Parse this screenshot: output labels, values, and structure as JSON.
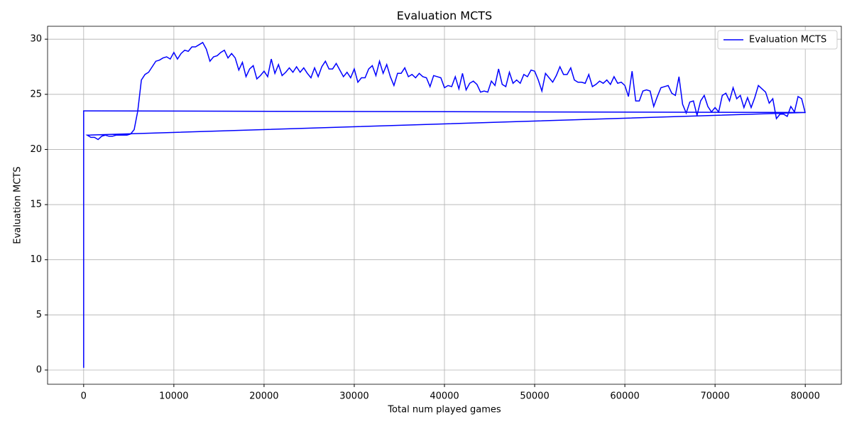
{
  "chart_data": {
    "type": "line",
    "title": "Evaluation MCTS",
    "xlabel": "Total num played games",
    "ylabel": "Evaluation MCTS",
    "xlim": [
      -4000,
      84000
    ],
    "ylim": [
      -1.29,
      31.17
    ],
    "xticks": [
      0,
      10000,
      20000,
      30000,
      40000,
      50000,
      60000,
      70000,
      80000
    ],
    "yticks": [
      0,
      5,
      10,
      15,
      20,
      25,
      30
    ],
    "grid": true,
    "legend": "upper right",
    "x": [
      0,
      0,
      80000,
      400,
      800,
      1200,
      1600,
      2000,
      2400,
      2800,
      3200,
      3600,
      4000,
      4400,
      4800,
      5200,
      5600,
      6000,
      6400,
      6800,
      7200,
      7600,
      8000,
      8400,
      8800,
      9200,
      9600,
      10000,
      10400,
      10800,
      11200,
      11600,
      12000,
      12400,
      12800,
      13200,
      13600,
      14000,
      14400,
      14800,
      15200,
      15600,
      16000,
      16400,
      16800,
      17200,
      17600,
      18000,
      18400,
      18800,
      19200,
      19600,
      20000,
      20400,
      20800,
      21200,
      21600,
      22000,
      22400,
      22800,
      23200,
      23600,
      24000,
      24400,
      24800,
      25200,
      25600,
      26000,
      26400,
      26800,
      27200,
      27600,
      28000,
      28400,
      28800,
      29200,
      29600,
      30000,
      30400,
      30800,
      31200,
      31600,
      32000,
      32400,
      32800,
      33200,
      33600,
      34000,
      34400,
      34800,
      35200,
      35600,
      36000,
      36400,
      36800,
      37200,
      37600,
      38000,
      38400,
      38800,
      39200,
      39600,
      40000,
      40400,
      40800,
      41200,
      41600,
      42000,
      42400,
      42800,
      43200,
      43600,
      44000,
      44400,
      44800,
      45200,
      45600,
      46000,
      46400,
      46800,
      47200,
      47600,
      48000,
      48400,
      48800,
      49200,
      49600,
      50000,
      50400,
      50800,
      51200,
      51600,
      52000,
      52400,
      52800,
      53200,
      53600,
      54000,
      54400,
      54800,
      55200,
      55600,
      56000,
      56400,
      56800,
      57200,
      57600,
      58000,
      58400,
      58800,
      59200,
      59600,
      60000,
      60400,
      60800,
      61200,
      61600,
      62000,
      62400,
      62800,
      63200,
      63600,
      64000,
      64400,
      64800,
      65200,
      65600,
      66000,
      66400,
      66800,
      67200,
      67600,
      68000,
      68400,
      68800,
      69200,
      69600,
      70000,
      70400,
      70800,
      71200,
      71600,
      72000,
      72400,
      72800,
      73200,
      73600,
      74000,
      74400,
      74800,
      75200,
      75600,
      76000,
      76400,
      76800,
      77200,
      77600,
      78000,
      78400,
      78800,
      79200,
      79600,
      80000
    ],
    "series": [
      {
        "name": "Evaluation MCTS",
        "color": "#0000ff",
        "values": [
          0.2,
          23.5,
          23.35,
          21.3,
          21.1,
          21.1,
          20.9,
          21.2,
          21.3,
          21.2,
          21.2,
          21.3,
          21.3,
          21.3,
          21.3,
          21.4,
          21.8,
          23.5,
          26.3,
          26.8,
          27.0,
          27.5,
          28.0,
          28.1,
          28.3,
          28.4,
          28.2,
          28.8,
          28.2,
          28.7,
          29.0,
          28.9,
          29.3,
          29.3,
          29.5,
          29.7,
          29.1,
          28.0,
          28.4,
          28.5,
          28.8,
          29.0,
          28.3,
          28.7,
          28.3,
          27.2,
          27.9,
          26.6,
          27.3,
          27.6,
          26.4,
          26.7,
          27.1,
          26.6,
          28.2,
          26.9,
          27.7,
          26.7,
          27.0,
          27.4,
          27.0,
          27.5,
          27.0,
          27.4,
          26.9,
          26.5,
          27.4,
          26.6,
          27.5,
          28.0,
          27.3,
          27.3,
          27.8,
          27.2,
          26.6,
          27.0,
          26.5,
          27.3,
          26.1,
          26.5,
          26.5,
          27.3,
          27.6,
          26.7,
          28.0,
          26.9,
          27.7,
          26.6,
          25.8,
          26.9,
          26.9,
          27.4,
          26.6,
          26.8,
          26.5,
          26.9,
          26.6,
          26.5,
          25.7,
          26.7,
          26.6,
          26.5,
          25.6,
          25.8,
          25.7,
          26.6,
          25.5,
          26.9,
          25.4,
          26.0,
          26.2,
          25.9,
          25.2,
          25.3,
          25.2,
          26.2,
          25.8,
          27.3,
          25.9,
          25.7,
          27.0,
          26.0,
          26.3,
          26.0,
          26.8,
          26.6,
          27.2,
          27.1,
          26.3,
          25.3,
          26.9,
          26.5,
          26.1,
          26.7,
          27.5,
          26.8,
          26.8,
          27.4,
          26.3,
          26.1,
          26.1,
          26.0,
          26.8,
          25.7,
          25.9,
          26.2,
          26.0,
          26.3,
          25.9,
          26.6,
          26.0,
          26.1,
          25.8,
          24.8,
          27.1,
          24.4,
          24.4,
          25.3,
          25.4,
          25.3,
          23.9,
          24.8,
          25.6,
          25.7,
          25.8,
          25.1,
          24.9,
          26.6,
          24.1,
          23.3,
          24.3,
          24.4,
          23.1,
          24.4,
          24.9,
          23.9,
          23.4,
          23.8,
          23.4,
          24.9,
          25.1,
          24.4,
          25.6,
          24.6,
          24.9,
          23.8,
          24.7,
          23.8,
          24.7,
          25.8,
          25.5,
          25.2,
          24.2,
          24.6,
          22.8,
          23.2,
          23.2,
          23.0,
          23.9,
          23.4,
          24.8,
          24.6,
          23.3
        ]
      }
    ]
  }
}
